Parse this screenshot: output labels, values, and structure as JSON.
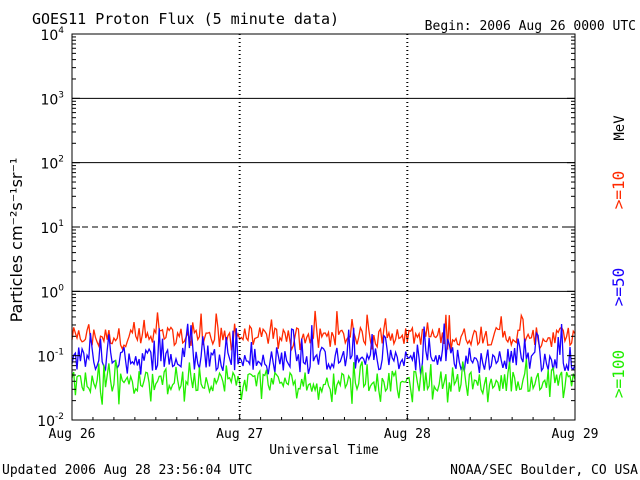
{
  "chart_data": {
    "type": "line",
    "title": "GOES11 Proton Flux (5 minute data)",
    "begin_label": "Begin: 2006 Aug 26 0000 UTC",
    "xlabel": "Universal Time",
    "ylabel": "Particles cm⁻²s⁻¹sr⁻¹",
    "y_scale": "log",
    "ylim": [
      0.01,
      10000
    ],
    "y_ticks": [
      {
        "value": 0.01,
        "base": "10",
        "exp": "-2"
      },
      {
        "value": 0.1,
        "base": "10",
        "exp": "-1"
      },
      {
        "value": 1,
        "base": "10",
        "exp": "0"
      },
      {
        "value": 10,
        "base": "10",
        "exp": "1"
      },
      {
        "value": 100,
        "base": "10",
        "exp": "2"
      },
      {
        "value": 1000,
        "base": "10",
        "exp": "3"
      },
      {
        "value": 10000,
        "base": "10",
        "exp": "4"
      }
    ],
    "x_ticks": [
      "Aug 26",
      "Aug 27",
      "Aug 28",
      "Aug 29"
    ],
    "threshold_lines": [
      {
        "value": 1,
        "style": "solid"
      },
      {
        "value": 10,
        "style": "dashed"
      },
      {
        "value": 100,
        "style": "solid"
      },
      {
        "value": 1000,
        "style": "solid"
      }
    ],
    "unit_label": "MeV",
    "series": [
      {
        "name": ">=10",
        "color": "#ff2a00",
        "min": 0.12,
        "max": 0.5,
        "typical": 0.2
      },
      {
        "name": ">=50",
        "color": "#1a00ff",
        "min": 0.05,
        "max": 0.35,
        "typical": 0.09
      },
      {
        "name": ">=100",
        "color": "#22ee00",
        "min": 0.017,
        "max": 0.09,
        "typical": 0.04
      }
    ],
    "grid": false
  },
  "footer": {
    "updated": "Updated 2006 Aug 28 23:56:04 UTC",
    "source": "NOAA/SEC Boulder, CO USA"
  }
}
